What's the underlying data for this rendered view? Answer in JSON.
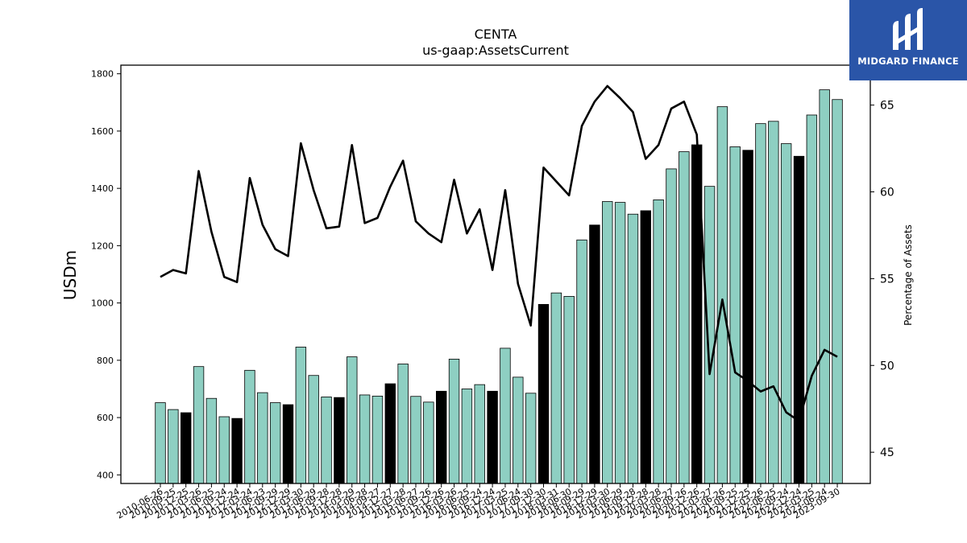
{
  "brand": {
    "name": "MIDGARD FINANCE",
    "bg_color": "#2a55a8"
  },
  "chart_data": {
    "type": "bar",
    "title": "CENTA",
    "subtitle": "us-gaap:AssetsCurrent",
    "ylabel": "USDm",
    "y2label": "Percentage of Assets",
    "ylim": [
      370,
      1830
    ],
    "y2lim": [
      43.2,
      67.3
    ],
    "yticks": [
      400,
      600,
      800,
      1000,
      1200,
      1400,
      1600,
      1800
    ],
    "y2ticks": [
      45,
      50,
      55,
      60,
      65
    ],
    "bar_color": "#8ecfc2",
    "highlight_color": "#000000",
    "line_color": "#000000",
    "categories": [
      "2010-06-26",
      "2010-09-25",
      "2010-12-25",
      "2011-03-26",
      "2011-06-25",
      "2011-09-24",
      "2011-12-24",
      "2012-03-24",
      "2012-06-23",
      "2012-09-29",
      "2012-12-29",
      "2013-03-30",
      "2013-06-29",
      "2013-09-28",
      "2013-12-28",
      "2014-03-29",
      "2014-06-28",
      "2014-09-27",
      "2014-12-27",
      "2015-03-28",
      "2015-06-27",
      "2015-09-26",
      "2015-12-26",
      "2016-03-26",
      "2016-06-25",
      "2016-09-24",
      "2016-12-24",
      "2017-03-25",
      "2017-06-24",
      "2017-09-30",
      "2017-12-30",
      "2018-03-31",
      "2018-06-30",
      "2018-09-29",
      "2018-12-29",
      "2019-03-30",
      "2019-06-29",
      "2019-09-28",
      "2019-12-28",
      "2020-03-28",
      "2020-06-27",
      "2020-09-26",
      "2020-12-26",
      "2021-03-27",
      "2021-06-26",
      "2021-09-25",
      "2021-12-25",
      "2022-03-26",
      "2022-06-25",
      "2022-09-24",
      "2022-12-24",
      "2023-03-25",
      "2023-06-24",
      "2023-09-30"
    ],
    "xticklabels": [
      "2010-06-26",
      "2010-09-25",
      "2010-12-25",
      "2011-03-26",
      "2011-06-25",
      "2011-09-24",
      "2011-12-24",
      "2012-03-24",
      "2012-06-23",
      "2012-09-29",
      "2012-12-29",
      "2013-03-30",
      "2013-06-29",
      "2013-09-28",
      "2013-12-28",
      "2014-03-29",
      "2014-06-28",
      "2014-09-27",
      "2014-12-27",
      "2015-03-28",
      "2015-06-27",
      "2015-09-26",
      "2015-12-26",
      "2016-03-26",
      "2016-06-25",
      "2016-09-24",
      "2016-12-24",
      "2017-03-25",
      "2017-06-24",
      "2017-09-30",
      "2017-12-30",
      "2018-03-31",
      "2018-06-30",
      "2018-09-29",
      "2018-12-29",
      "2019-03-30",
      "2019-06-29",
      "2019-09-28",
      "2019-12-28",
      "2020-03-28",
      "2020-06-27",
      "2020-09-26",
      "2020-12-26",
      "2021-03-27",
      "2021-06-26",
      "2021-09-25",
      "2021-12-25",
      "2022-03-26",
      "2022-06-25",
      "2022-09-24",
      "2022-12-24",
      "2023-03-25",
      "2023-06-24",
      "2023-09-30"
    ],
    "series": [
      {
        "type": "bar",
        "axis": "left",
        "values": [
          652,
          628,
          617,
          778,
          667,
          603,
          597,
          765,
          687,
          652,
          645,
          846,
          747,
          672,
          670,
          812,
          679,
          675,
          718,
          787,
          674,
          654,
          692,
          804,
          700,
          715,
          692,
          842,
          741,
          685,
          995,
          1035,
          1023,
          1220,
          1272,
          1354,
          1351,
          1310,
          1322,
          1360,
          1468,
          1528,
          1552,
          1407,
          1685,
          1545,
          1533,
          1626,
          1634,
          1556,
          1512,
          1656,
          1744,
          1710
        ],
        "highlight": [
          false,
          false,
          true,
          false,
          false,
          false,
          true,
          false,
          false,
          false,
          true,
          false,
          false,
          false,
          true,
          false,
          false,
          false,
          true,
          false,
          false,
          false,
          true,
          false,
          false,
          false,
          true,
          false,
          false,
          false,
          true,
          false,
          false,
          false,
          true,
          false,
          false,
          false,
          true,
          false,
          false,
          false,
          true,
          false,
          false,
          false,
          true,
          false,
          false,
          false,
          true,
          false,
          false,
          false
        ]
      },
      {
        "type": "line",
        "axis": "right",
        "values": [
          55.1,
          55.5,
          55.3,
          61.2,
          57.7,
          55.1,
          54.8,
          60.8,
          58.1,
          56.7,
          56.3,
          62.8,
          60.1,
          57.9,
          58.0,
          62.7,
          58.2,
          58.5,
          60.3,
          61.8,
          58.3,
          57.6,
          57.1,
          60.7,
          57.6,
          59.0,
          55.5,
          60.1,
          54.7,
          52.3,
          61.4,
          60.6,
          59.8,
          63.8,
          65.2,
          66.1,
          65.4,
          64.6,
          61.9,
          62.7,
          64.8,
          65.2,
          63.3,
          49.5,
          53.8,
          49.6,
          49.1,
          48.5,
          48.8,
          47.3,
          46.8,
          49.4,
          50.9,
          50.5
        ]
      }
    ],
    "legend": "none",
    "grid": false
  }
}
